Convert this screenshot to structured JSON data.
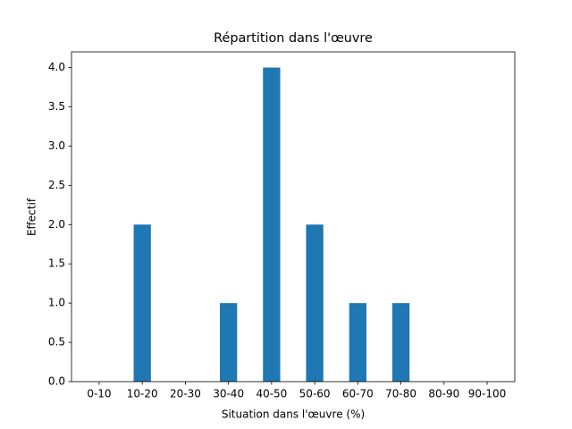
{
  "chart_data": {
    "type": "bar",
    "title": "Répartition dans l'œuvre",
    "x_label": "Situation dans l'œuvre (%)",
    "y_label": "Effectif",
    "categories": [
      "0-10",
      "10-20",
      "20-30",
      "30-40",
      "40-50",
      "50-60",
      "60-70",
      "70-80",
      "80-90",
      "90-100"
    ],
    "values": [
      0,
      2,
      0,
      1,
      4,
      2,
      1,
      1,
      0,
      0
    ],
    "color": "#1f77b4",
    "ylim": [
      0,
      4.2
    ],
    "yticks": [
      {
        "value": 0,
        "label": "0.0"
      },
      {
        "value": 0.5,
        "label": "0.5"
      },
      {
        "value": 1,
        "label": "1.0"
      },
      {
        "value": 1.5,
        "label": "1.5"
      },
      {
        "value": 2,
        "label": "2.0"
      },
      {
        "value": 2.5,
        "label": "2.5"
      },
      {
        "value": 3,
        "label": "3.0"
      },
      {
        "value": 3.5,
        "label": "3.5"
      },
      {
        "value": 4,
        "label": "4.0"
      }
    ],
    "grid": false
  }
}
